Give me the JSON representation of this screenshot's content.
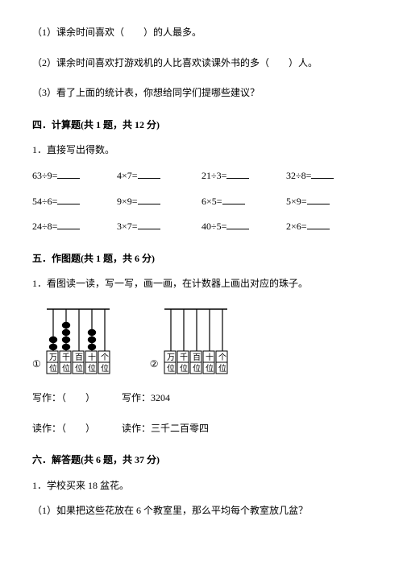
{
  "q1": "（1）课余时间喜欢（　　）的人最多。",
  "q2": "（2）课余时间喜欢打游戏机的人比喜欢读课外书的多（　　）人。",
  "q3": "（3）看了上面的统计表，你想给同学们提哪些建议？",
  "section4": "四．计算题(共 1 题，共 12 分)",
  "s4_sub": "1．直接写出得数。",
  "calc": [
    [
      "63÷9=",
      "4×7=",
      "21÷3=",
      "32÷8="
    ],
    [
      "54÷6=",
      "9×9=",
      "6×5=",
      "5×9="
    ],
    [
      "24÷8=",
      "3×7=",
      "40÷5=",
      "2×6="
    ]
  ],
  "section5": "五．作图题(共 1 题，共 6 分)",
  "s5_sub": "1．看图读一读，写一写，画一画，在计数器上画出对应的珠子。",
  "abacus": {
    "labels": [
      "万",
      "千",
      "百",
      "十",
      "个"
    ],
    "labels2": [
      "位",
      "位",
      "位",
      "位",
      "位"
    ],
    "beads1": [
      2,
      4,
      0,
      3,
      0
    ],
    "beads2": [
      0,
      0,
      0,
      0,
      0
    ],
    "mark1": "①",
    "mark2": "②",
    "bead_color": "#000000",
    "rod_color": "#000000",
    "border_color": "#000000"
  },
  "write_label": "写作：",
  "write_blank": "（　　）",
  "write_val": "写作：3204",
  "read_label": "读作：",
  "read_blank": "（　　）",
  "read_val": "读作：三千二百零四",
  "section6": "六．解答题(共 6 题，共 37 分)",
  "s6_q1": "1．学校买来 18 盆花。",
  "s6_q1_1": "（1）如果把这些花放在 6 个教室里，那么平均每个教室放几盆？"
}
